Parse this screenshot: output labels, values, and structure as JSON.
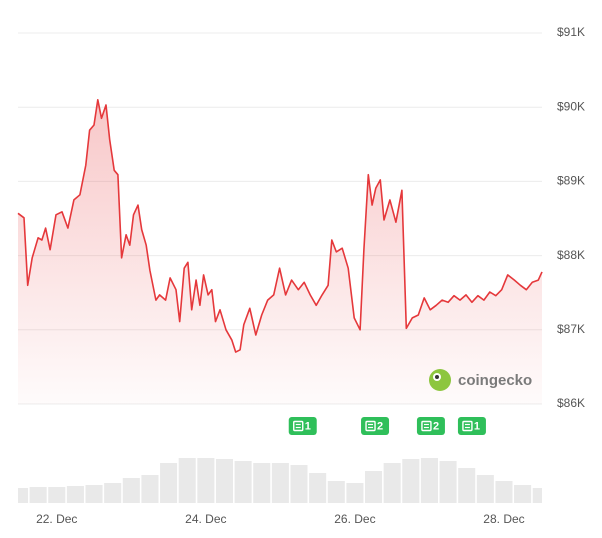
{
  "chart_data": {
    "type": "area",
    "color": "#e5383b",
    "grid": true,
    "watermark": "coingecko",
    "ylim": [
      86000,
      91000
    ],
    "yticks": [
      {
        "value": 86000,
        "label": "$86K"
      },
      {
        "value": 87000,
        "label": "$87K"
      },
      {
        "value": 88000,
        "label": "$88K"
      },
      {
        "value": 89000,
        "label": "$89K"
      },
      {
        "value": 90000,
        "label": "$90K"
      },
      {
        "value": 91000,
        "label": "$91K"
      }
    ],
    "xlim": [
      21.48,
      28.51
    ],
    "xticks": [
      {
        "value": 22,
        "label": "22. Dec"
      },
      {
        "value": 24,
        "label": "24. Dec"
      },
      {
        "value": 26,
        "label": "26. Dec"
      },
      {
        "value": 28,
        "label": "28. Dec"
      }
    ],
    "x": [
      21.48,
      21.56,
      21.61,
      21.67,
      21.75,
      21.8,
      21.85,
      21.91,
      21.99,
      22.07,
      22.15,
      22.23,
      22.31,
      22.39,
      22.44,
      22.5,
      22.55,
      22.6,
      22.66,
      22.71,
      22.77,
      22.82,
      22.87,
      22.93,
      22.98,
      23.03,
      23.09,
      23.14,
      23.2,
      23.25,
      23.33,
      23.38,
      23.46,
      23.52,
      23.6,
      23.65,
      23.71,
      23.76,
      23.81,
      23.87,
      23.92,
      23.97,
      24.03,
      24.08,
      24.13,
      24.19,
      24.27,
      24.35,
      24.4,
      24.46,
      24.51,
      24.59,
      24.67,
      24.75,
      24.83,
      24.91,
      24.99,
      25.07,
      25.15,
      25.24,
      25.32,
      25.4,
      25.48,
      25.56,
      25.64,
      25.69,
      25.75,
      25.83,
      25.91,
      25.99,
      26.07,
      26.12,
      26.18,
      26.23,
      26.28,
      26.34,
      26.39,
      26.47,
      26.55,
      26.63,
      26.69,
      26.77,
      26.85,
      26.93,
      27.01,
      27.09,
      27.17,
      27.25,
      27.33,
      27.41,
      27.49,
      27.57,
      27.65,
      27.73,
      27.81,
      27.89,
      27.97,
      28.05,
      28.14,
      28.22,
      28.3,
      28.38,
      28.46,
      28.51
    ],
    "values": [
      88570,
      88510,
      87600,
      87970,
      88240,
      88210,
      88370,
      88080,
      88550,
      88590,
      88370,
      88750,
      88820,
      89220,
      89690,
      89760,
      90100,
      89850,
      90030,
      89560,
      89150,
      89090,
      87970,
      88280,
      88140,
      88550,
      88680,
      88350,
      88140,
      87800,
      87400,
      87470,
      87400,
      87700,
      87540,
      87110,
      87830,
      87910,
      87270,
      87670,
      87330,
      87740,
      87470,
      87540,
      87110,
      87270,
      87000,
      86860,
      86700,
      86730,
      87070,
      87290,
      86930,
      87200,
      87400,
      87470,
      87830,
      87470,
      87670,
      87540,
      87640,
      87470,
      87330,
      87470,
      87600,
      88210,
      88050,
      88100,
      87830,
      87160,
      87000,
      88080,
      89090,
      88680,
      88910,
      89020,
      88480,
      88750,
      88450,
      88880,
      87020,
      87160,
      87200,
      87430,
      87270,
      87330,
      87400,
      87370,
      87460,
      87400,
      87470,
      87370,
      87460,
      87400,
      87510,
      87460,
      87540,
      87740,
      87670,
      87600,
      87540,
      87640,
      87670,
      87780
    ],
    "volume": {
      "ylim": [
        0,
        50
      ],
      "x": [
        21.5,
        21.75,
        22.0,
        22.25,
        22.5,
        22.75,
        23.0,
        23.25,
        23.5,
        23.75,
        24.0,
        24.25,
        24.5,
        24.75,
        25.0,
        25.25,
        25.5,
        25.75,
        26.0,
        26.25,
        26.5,
        26.75,
        27.0,
        27.25,
        27.5,
        27.75,
        28.0,
        28.25,
        28.5
      ],
      "values": [
        15,
        16,
        16,
        17,
        18,
        20,
        25,
        28,
        40,
        45,
        45,
        44,
        42,
        40,
        40,
        38,
        30,
        22,
        20,
        32,
        40,
        44,
        45,
        42,
        35,
        28,
        22,
        18,
        15
      ]
    },
    "news": [
      {
        "x": 25.3,
        "count": 1
      },
      {
        "x": 26.27,
        "count": 2
      },
      {
        "x": 27.02,
        "count": 2
      },
      {
        "x": 27.57,
        "count": 1
      }
    ]
  }
}
